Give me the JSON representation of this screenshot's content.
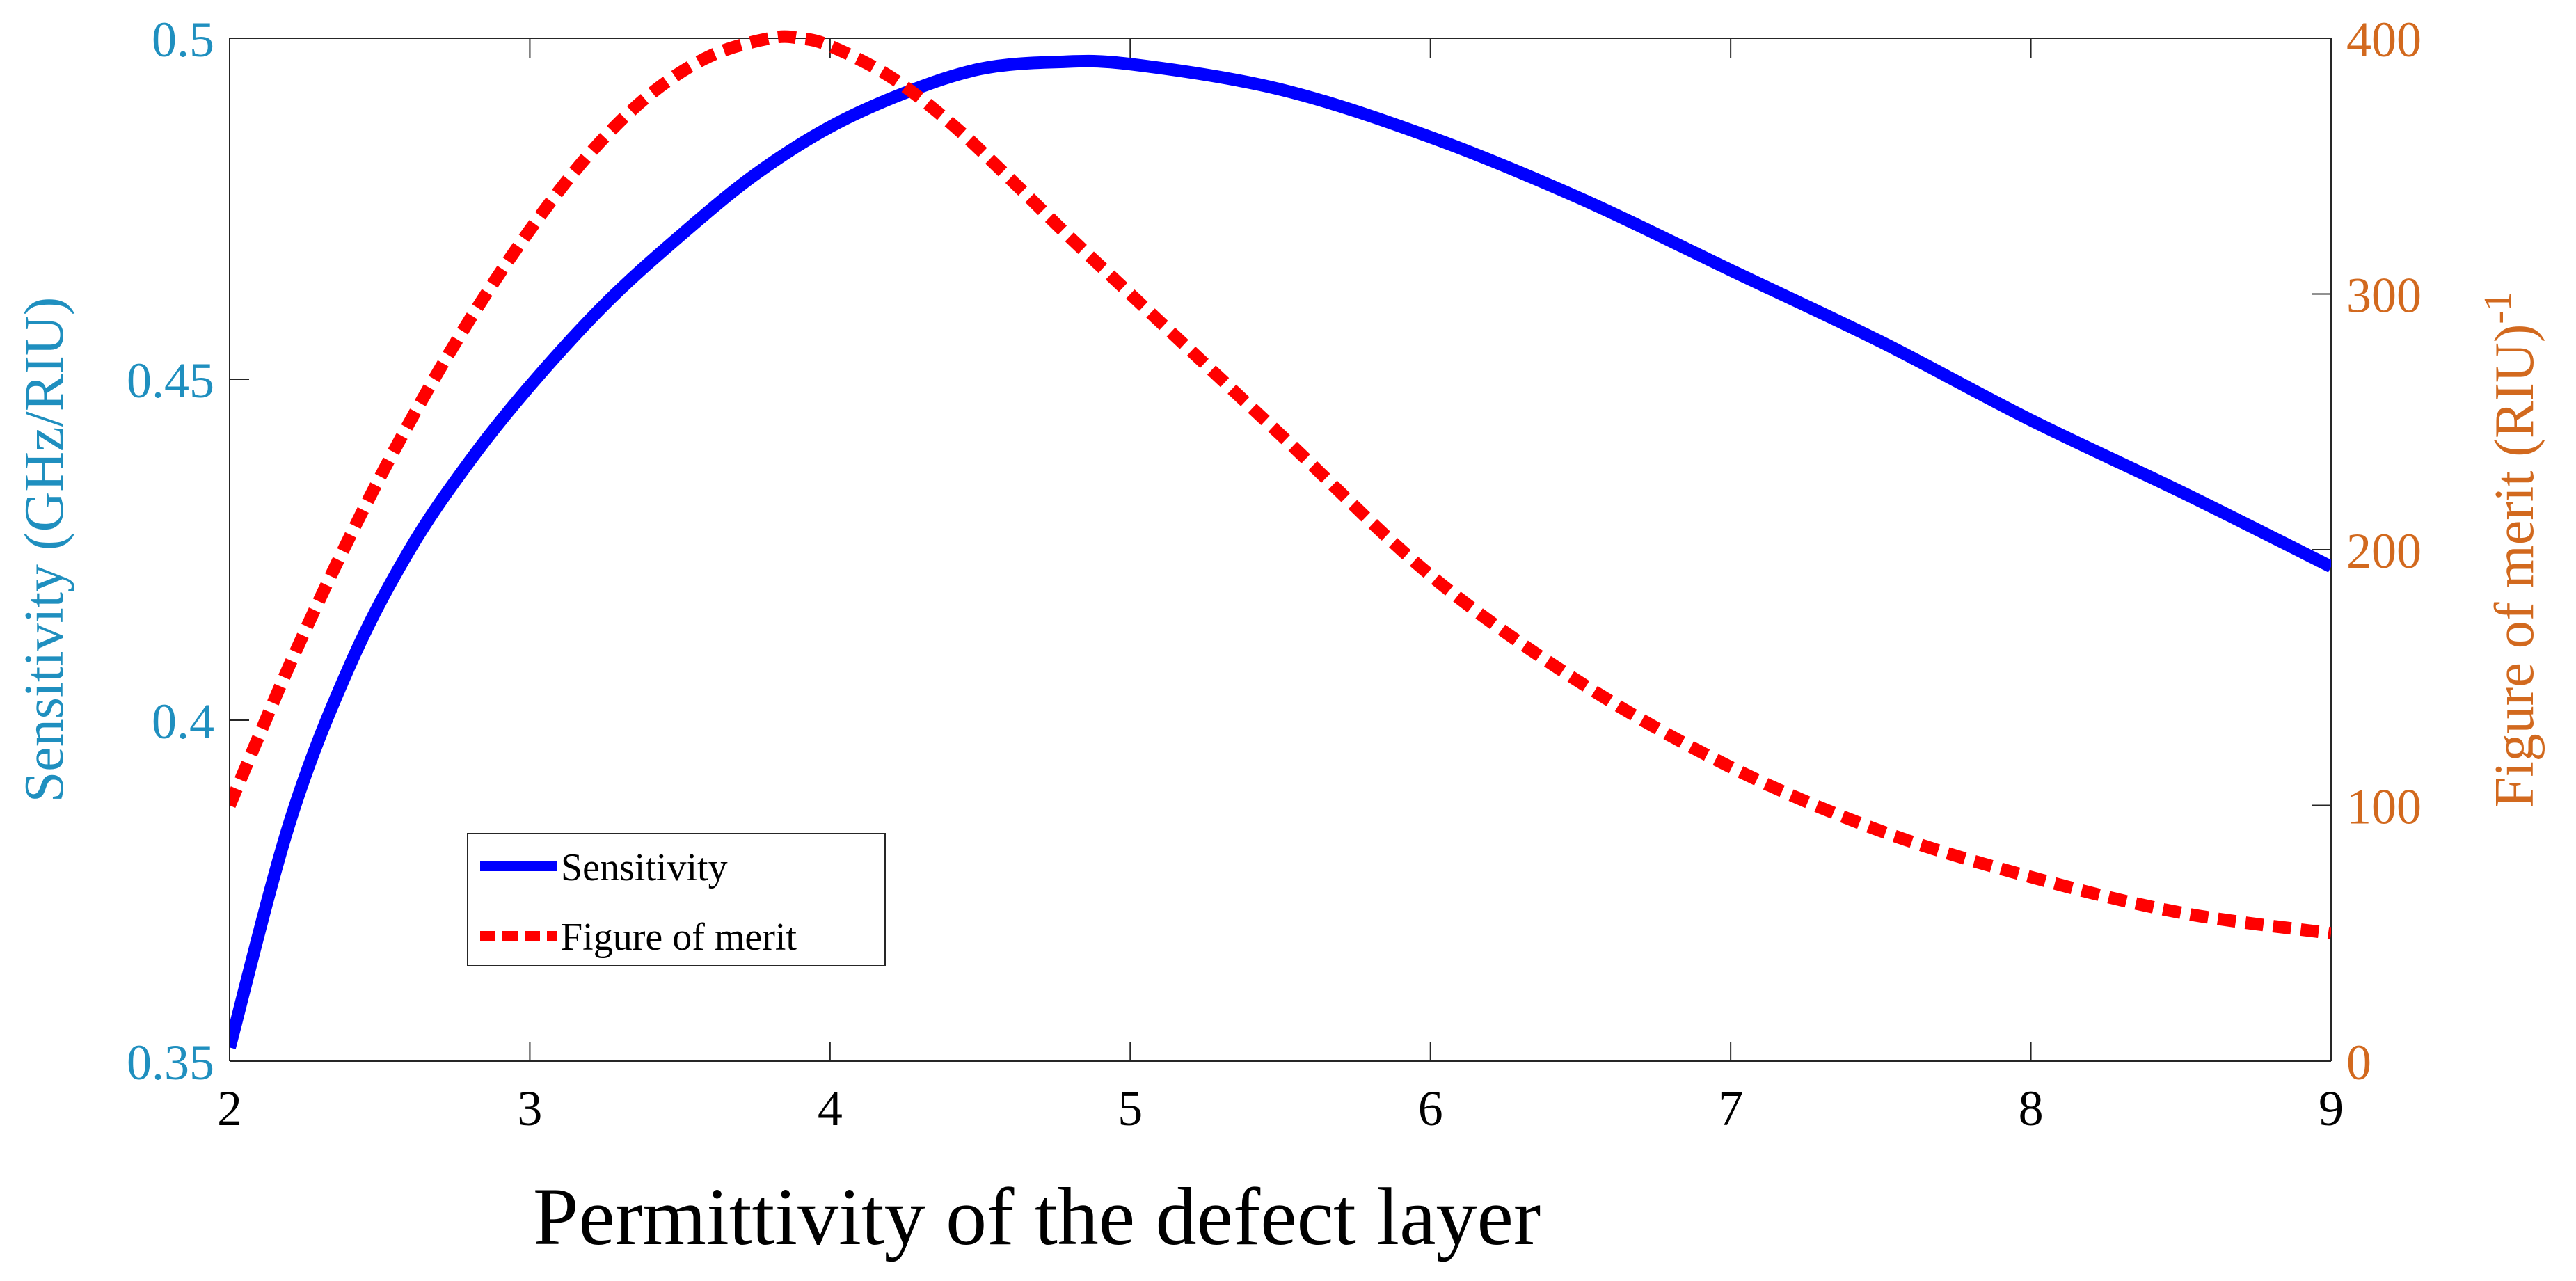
{
  "chart_data": {
    "type": "line",
    "title": "",
    "xlabel": "Permittivity of the defect layer",
    "ylabel_left": "Sensitivity (GHz/RIU)",
    "ylabel_right": {
      "base": "Figure of merit (RIU)",
      "superscript": "-1"
    },
    "xlim": [
      2,
      9
    ],
    "ylim_left": [
      0.35,
      0.5
    ],
    "ylim_right": [
      0,
      400
    ],
    "x_ticks": [
      "2",
      "3",
      "4",
      "5",
      "6",
      "7",
      "8",
      "9"
    ],
    "y_left_ticks": [
      "0.35",
      "0.4",
      "0.45",
      "0.5"
    ],
    "y_right_ticks": [
      "0",
      "100",
      "200",
      "300",
      "400"
    ],
    "legend_position": "lower-left",
    "colors": {
      "sensitivity": "#0000ff",
      "figure_of_merit": "#ff0000",
      "left_axis": "#1f8fbf",
      "right_axis": "#d2691e"
    },
    "series": [
      {
        "name": "Sensitivity",
        "axis": "left",
        "style": "solid",
        "x": [
          2.0,
          2.2,
          2.4,
          2.6,
          2.8,
          3.0,
          3.25,
          3.5,
          3.75,
          4.0,
          4.25,
          4.5,
          4.75,
          5.0,
          5.5,
          6.0,
          6.5,
          7.0,
          7.5,
          8.0,
          8.5,
          9.0
        ],
        "y": [
          0.352,
          0.385,
          0.408,
          0.425,
          0.438,
          0.449,
          0.461,
          0.471,
          0.48,
          0.487,
          0.492,
          0.4955,
          0.4965,
          0.4962,
          0.4925,
          0.4855,
          0.4765,
          0.466,
          0.4555,
          0.444,
          0.4335,
          0.4225
        ]
      },
      {
        "name": "Figure of merit",
        "axis": "right",
        "style": "dashed",
        "x": [
          2.0,
          2.2,
          2.4,
          2.6,
          2.8,
          3.0,
          3.2,
          3.4,
          3.6,
          3.8,
          3.9,
          4.0,
          4.2,
          4.4,
          4.6,
          4.8,
          5.0,
          5.5,
          6.0,
          6.5,
          7.0,
          7.5,
          8.0,
          8.5,
          9.0
        ],
        "y": [
          100,
          155,
          205,
          250,
          290,
          325,
          355,
          378,
          393,
          400,
          400,
          397,
          385,
          367,
          345,
          322,
          300,
          245,
          190,
          148,
          115,
          90,
          72,
          58,
          50
        ]
      }
    ]
  }
}
